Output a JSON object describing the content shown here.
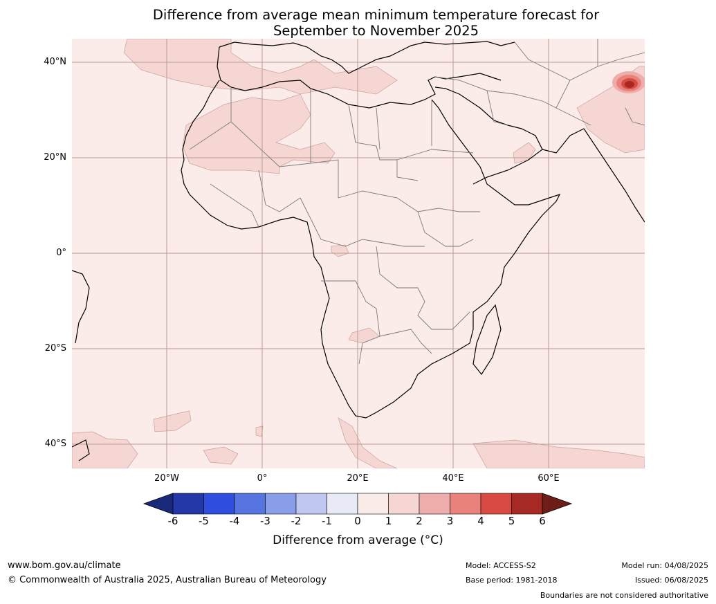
{
  "title": {
    "line1": "Difference from average mean minimum temperature forecast for",
    "line2": "September to November 2025"
  },
  "map": {
    "lat_labels": [
      "40°N",
      "20°N",
      "0°",
      "20°S",
      "40°S"
    ],
    "lon_labels": [
      "20°W",
      "0°",
      "20°E",
      "40°E",
      "60°E"
    ],
    "background_color": "#fbebe9",
    "anomaly_light_color": "#f5d6d3",
    "hotspot_color": "#a62a23"
  },
  "colorbar": {
    "ticks": [
      "-6",
      "-5",
      "-4",
      "-3",
      "-2",
      "-1",
      "0",
      "1",
      "2",
      "3",
      "4",
      "5",
      "6"
    ],
    "colors": [
      "#1a2a7a",
      "#2438a8",
      "#304fe0",
      "#5775e0",
      "#8a9de8",
      "#c0c7f0",
      "#e8eaf8",
      "#fbebe9",
      "#f5d6d3",
      "#eeadaa",
      "#e8827b",
      "#d94b42",
      "#a62a23",
      "#6e1e16"
    ],
    "label": "Difference from average (°C)"
  },
  "footer": {
    "website": "www.bom.gov.au/climate",
    "copyright": "© Commonwealth of Australia 2025, Australian Bureau of Meteorology",
    "model": "Model: ACCESS-S2",
    "base_period": "Base period: 1981-2018",
    "model_run": "Model run: 04/08/2025",
    "issued": "Issued: 06/08/2025",
    "disclaimer": "Boundaries are not considered authoritative"
  }
}
